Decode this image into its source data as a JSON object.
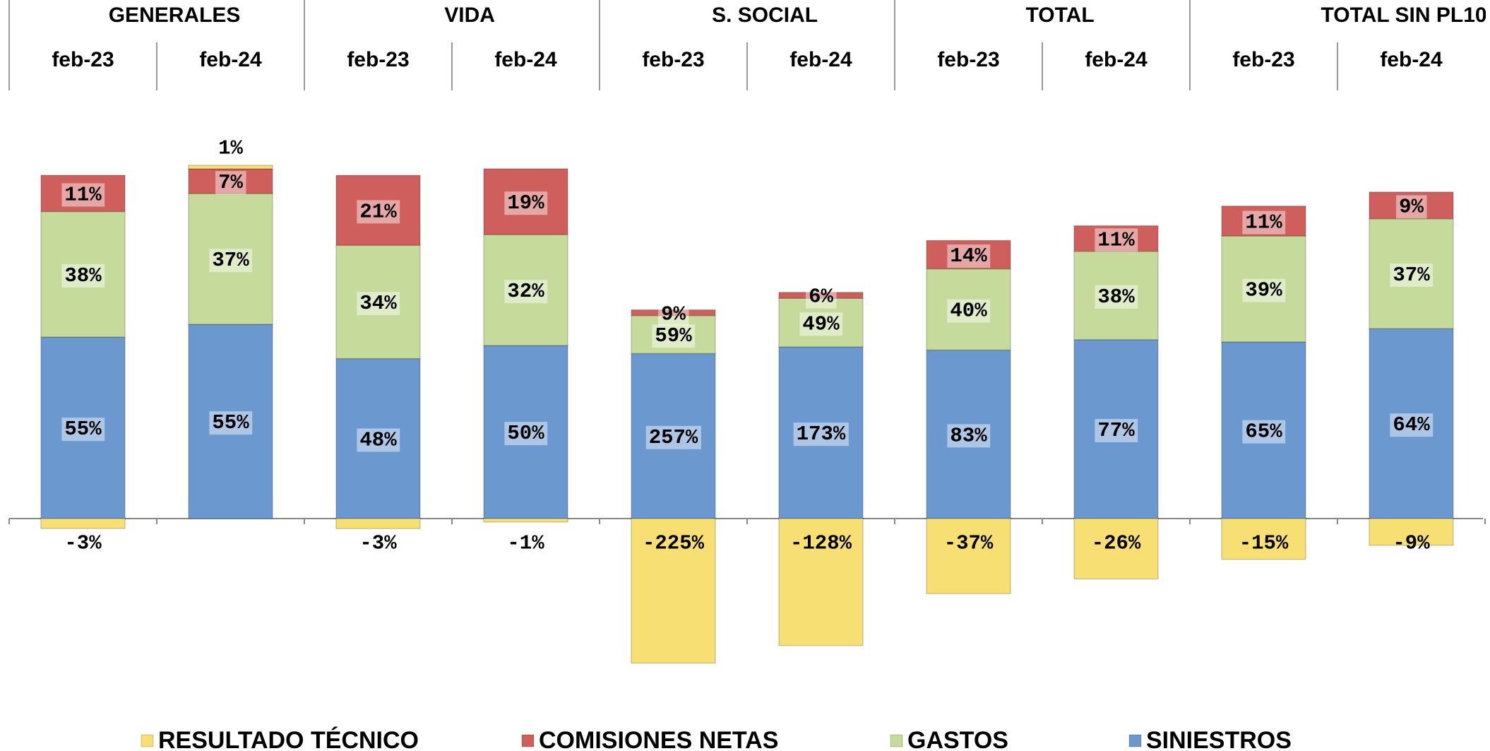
{
  "chart_data": {
    "type": "bar",
    "stacked": "percent",
    "groups": [
      "GENERALES",
      "VIDA",
      "S. SOCIAL",
      "TOTAL",
      "TOTAL SIN PL10"
    ],
    "categories": [
      "feb-23",
      "feb-24",
      "feb-23",
      "feb-24",
      "feb-23",
      "feb-24",
      "feb-23",
      "feb-24",
      "feb-23",
      "feb-24"
    ],
    "series": [
      {
        "name": "SINIESTROS",
        "color": "#6c98d0",
        "values": [
          55,
          55,
          48,
          50,
          257,
          173,
          83,
          77,
          65,
          64
        ],
        "value_labels": [
          "55%",
          "55%",
          "48%",
          "50%",
          "257%",
          "173%",
          "83%",
          "77%",
          "65%",
          "64%"
        ]
      },
      {
        "name": "GASTOS",
        "color": "#c6da9c",
        "values": [
          38,
          37,
          34,
          32,
          59,
          49,
          40,
          38,
          39,
          37
        ],
        "value_labels": [
          "38%",
          "37%",
          "34%",
          "32%",
          "59%",
          "49%",
          "40%",
          "38%",
          "39%",
          "37%"
        ]
      },
      {
        "name": "COMISIONES NETAS",
        "color": "#cf5f5c",
        "values": [
          11,
          7,
          21,
          19,
          9,
          6,
          14,
          11,
          11,
          9
        ],
        "value_labels": [
          "11%",
          "7%",
          "21%",
          "19%",
          "9%",
          "6%",
          "14%",
          "11%",
          "11%",
          "9%"
        ]
      },
      {
        "name": "RESULTADO TÉCNICO",
        "color": "#f8df74",
        "values": [
          -3,
          1,
          -3,
          -1,
          -225,
          -128,
          -37,
          -26,
          -15,
          -9
        ],
        "value_labels": [
          "-3%",
          "1%",
          "-3%",
          "-1%",
          "-225%",
          "-128%",
          "-37%",
          "-26%",
          "-15%",
          "-9%"
        ]
      }
    ],
    "legend": "bottom"
  }
}
